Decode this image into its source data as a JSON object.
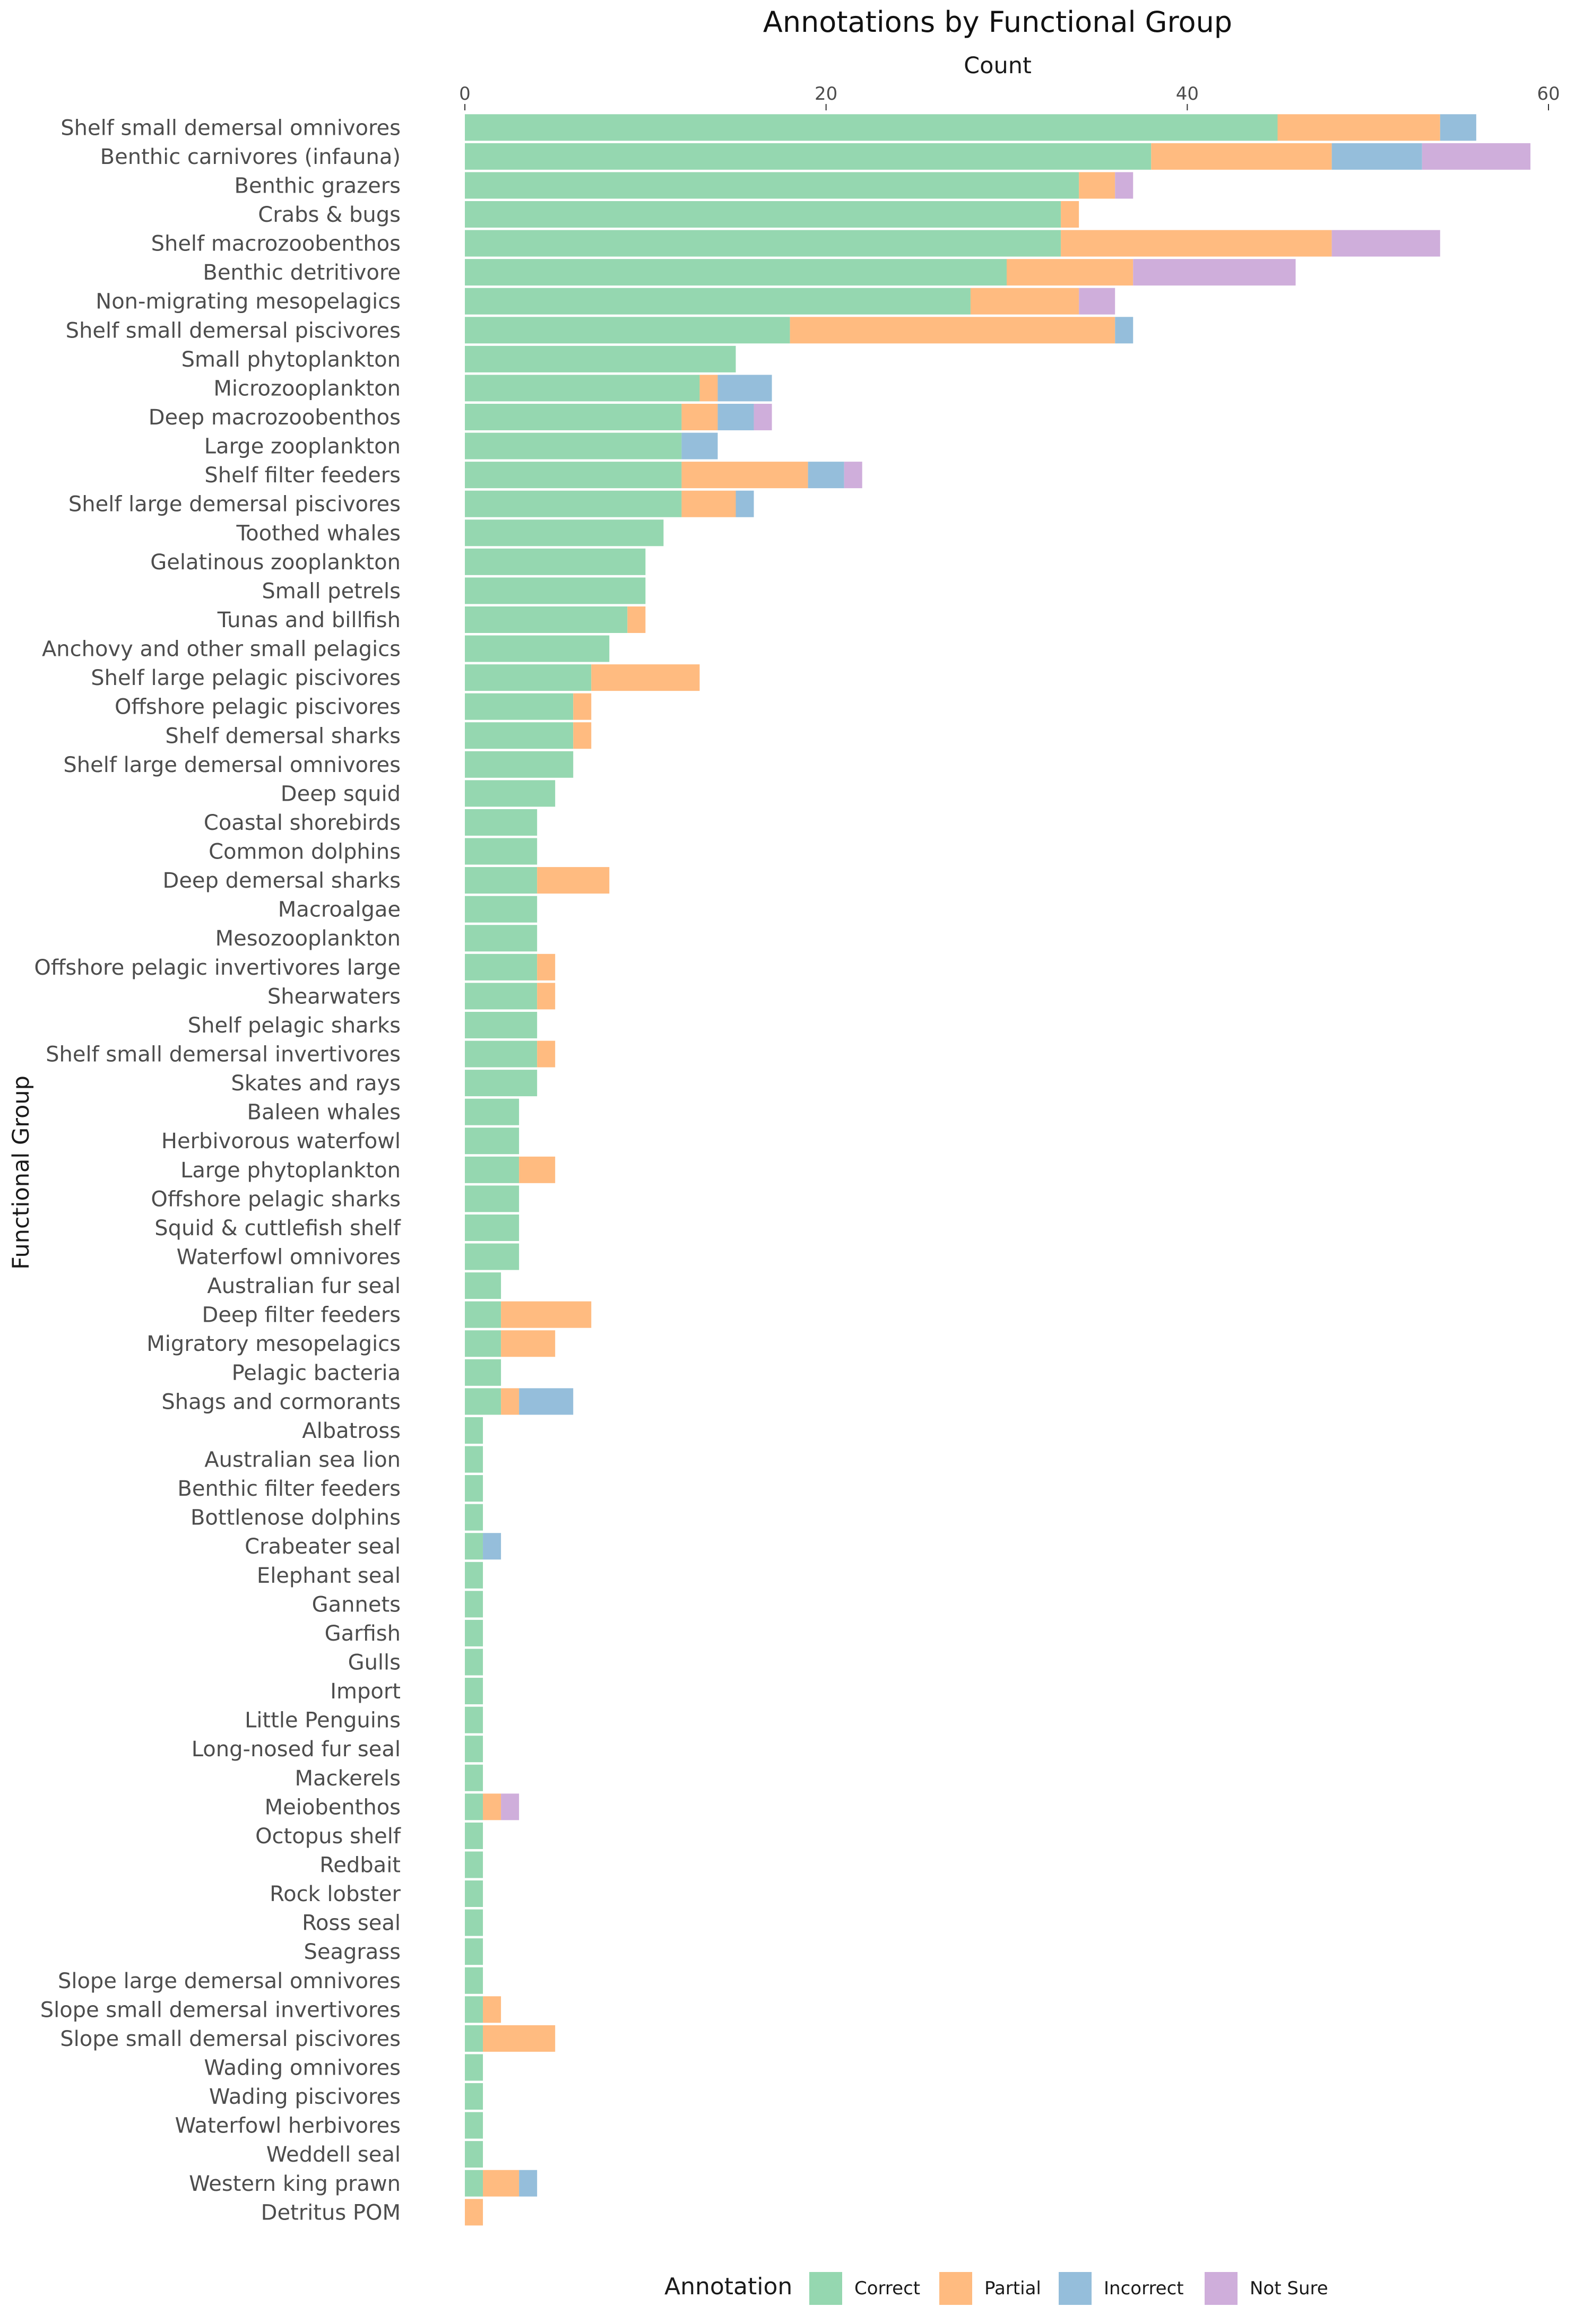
{
  "chart_data": {
    "type": "bar",
    "orientation": "horizontal",
    "stacked": true,
    "title": "Annotations by Functional Group",
    "xlabel": "Count",
    "ylabel": "Functional Group",
    "x_axis_position": "top",
    "xlim": [
      0,
      60
    ],
    "xticks": [
      0,
      20,
      40,
      60
    ],
    "grid": false,
    "legend": {
      "title": "Annotation",
      "position": "bottom"
    },
    "categories": [
      "Shelf small demersal omnivores",
      "Benthic carnivores (infauna)",
      "Benthic grazers",
      "Crabs & bugs",
      "Shelf macrozoobenthos",
      "Benthic detritivore",
      "Non-migrating mesopelagics",
      "Shelf small demersal piscivores",
      "Small phytoplankton",
      "Microzooplankton",
      "Deep macrozoobenthos",
      "Large zooplankton",
      "Shelf filter feeders",
      "Shelf large demersal piscivores",
      "Toothed whales",
      "Gelatinous zooplankton",
      "Small petrels",
      "Tunas and billfish",
      "Anchovy and other small pelagics",
      "Shelf large pelagic piscivores",
      "Offshore pelagic piscivores",
      "Shelf demersal sharks",
      "Shelf large demersal omnivores",
      "Deep squid",
      "Coastal shorebirds",
      "Common dolphins",
      "Deep demersal sharks",
      "Macroalgae",
      "Mesozooplankton",
      "Offshore pelagic invertivores large",
      "Shearwaters",
      "Shelf pelagic sharks",
      "Shelf small demersal invertivores",
      "Skates and rays",
      "Baleen whales",
      "Herbivorous waterfowl",
      "Large phytoplankton",
      "Offshore pelagic sharks",
      "Squid & cuttlefish shelf",
      "Waterfowl omnivores",
      "Australian fur seal",
      "Deep filter feeders",
      "Migratory mesopelagics",
      "Pelagic bacteria",
      "Shags and cormorants",
      "Albatross",
      "Australian sea lion",
      "Benthic filter feeders",
      "Bottlenose dolphins",
      "Crabeater seal",
      "Elephant seal",
      "Gannets",
      "Garfish",
      "Gulls",
      "Import",
      "Little Penguins",
      "Long-nosed fur seal",
      "Mackerels",
      "Meiobenthos",
      "Octopus shelf",
      "Redbait",
      "Rock lobster",
      "Ross seal",
      "Seagrass",
      "Slope large demersal omnivores",
      "Slope small demersal invertivores",
      "Slope small demersal piscivores",
      "Wading omnivores",
      "Wading piscivores",
      "Waterfowl herbivores",
      "Weddell seal",
      "Western king prawn",
      "Detritus POM"
    ],
    "series": [
      {
        "name": "Correct",
        "color": "#95d7b0",
        "values": [
          45,
          38,
          34,
          33,
          33,
          30,
          28,
          18,
          15,
          13,
          12,
          12,
          12,
          12,
          11,
          10,
          10,
          9,
          8,
          7,
          6,
          6,
          6,
          5,
          4,
          4,
          4,
          4,
          4,
          4,
          4,
          4,
          4,
          4,
          3,
          3,
          3,
          3,
          3,
          3,
          2,
          2,
          2,
          2,
          2,
          1,
          1,
          1,
          1,
          1,
          1,
          1,
          1,
          1,
          1,
          1,
          1,
          1,
          1,
          1,
          1,
          1,
          1,
          1,
          1,
          1,
          1,
          1,
          1,
          1,
          1,
          1,
          0
        ]
      },
      {
        "name": "Partial",
        "color": "#ffbb80",
        "values": [
          9,
          10,
          2,
          1,
          15,
          7,
          6,
          18,
          0,
          1,
          2,
          0,
          7,
          3,
          0,
          0,
          0,
          1,
          0,
          6,
          1,
          1,
          0,
          0,
          0,
          0,
          4,
          0,
          0,
          1,
          1,
          0,
          1,
          0,
          0,
          0,
          2,
          0,
          0,
          0,
          0,
          5,
          3,
          0,
          1,
          0,
          0,
          0,
          0,
          0,
          0,
          0,
          0,
          0,
          0,
          0,
          0,
          0,
          1,
          0,
          0,
          0,
          0,
          0,
          0,
          1,
          4,
          0,
          0,
          0,
          0,
          2,
          1
        ]
      },
      {
        "name": "Incorrect",
        "color": "#95bedb",
        "values": [
          2,
          5,
          0,
          0,
          0,
          0,
          0,
          1,
          0,
          3,
          2,
          2,
          2,
          1,
          0,
          0,
          0,
          0,
          0,
          0,
          0,
          0,
          0,
          0,
          0,
          0,
          0,
          0,
          0,
          0,
          0,
          0,
          0,
          0,
          0,
          0,
          0,
          0,
          0,
          0,
          0,
          0,
          0,
          0,
          3,
          0,
          0,
          0,
          0,
          1,
          0,
          0,
          0,
          0,
          0,
          0,
          0,
          0,
          0,
          0,
          0,
          0,
          0,
          0,
          0,
          0,
          0,
          0,
          0,
          0,
          0,
          1,
          0
        ]
      },
      {
        "name": "Not Sure",
        "color": "#cfaedb",
        "values": [
          0,
          6,
          1,
          0,
          6,
          9,
          2,
          0,
          0,
          0,
          1,
          0,
          1,
          0,
          0,
          0,
          0,
          0,
          0,
          0,
          0,
          0,
          0,
          0,
          0,
          0,
          0,
          0,
          0,
          0,
          0,
          0,
          0,
          0,
          0,
          0,
          0,
          0,
          0,
          0,
          0,
          0,
          0,
          0,
          0,
          0,
          0,
          0,
          0,
          0,
          0,
          0,
          0,
          0,
          0,
          0,
          0,
          0,
          1,
          0,
          0,
          0,
          0,
          0,
          0,
          0,
          0,
          0,
          0,
          0,
          0,
          0,
          0
        ]
      }
    ]
  }
}
